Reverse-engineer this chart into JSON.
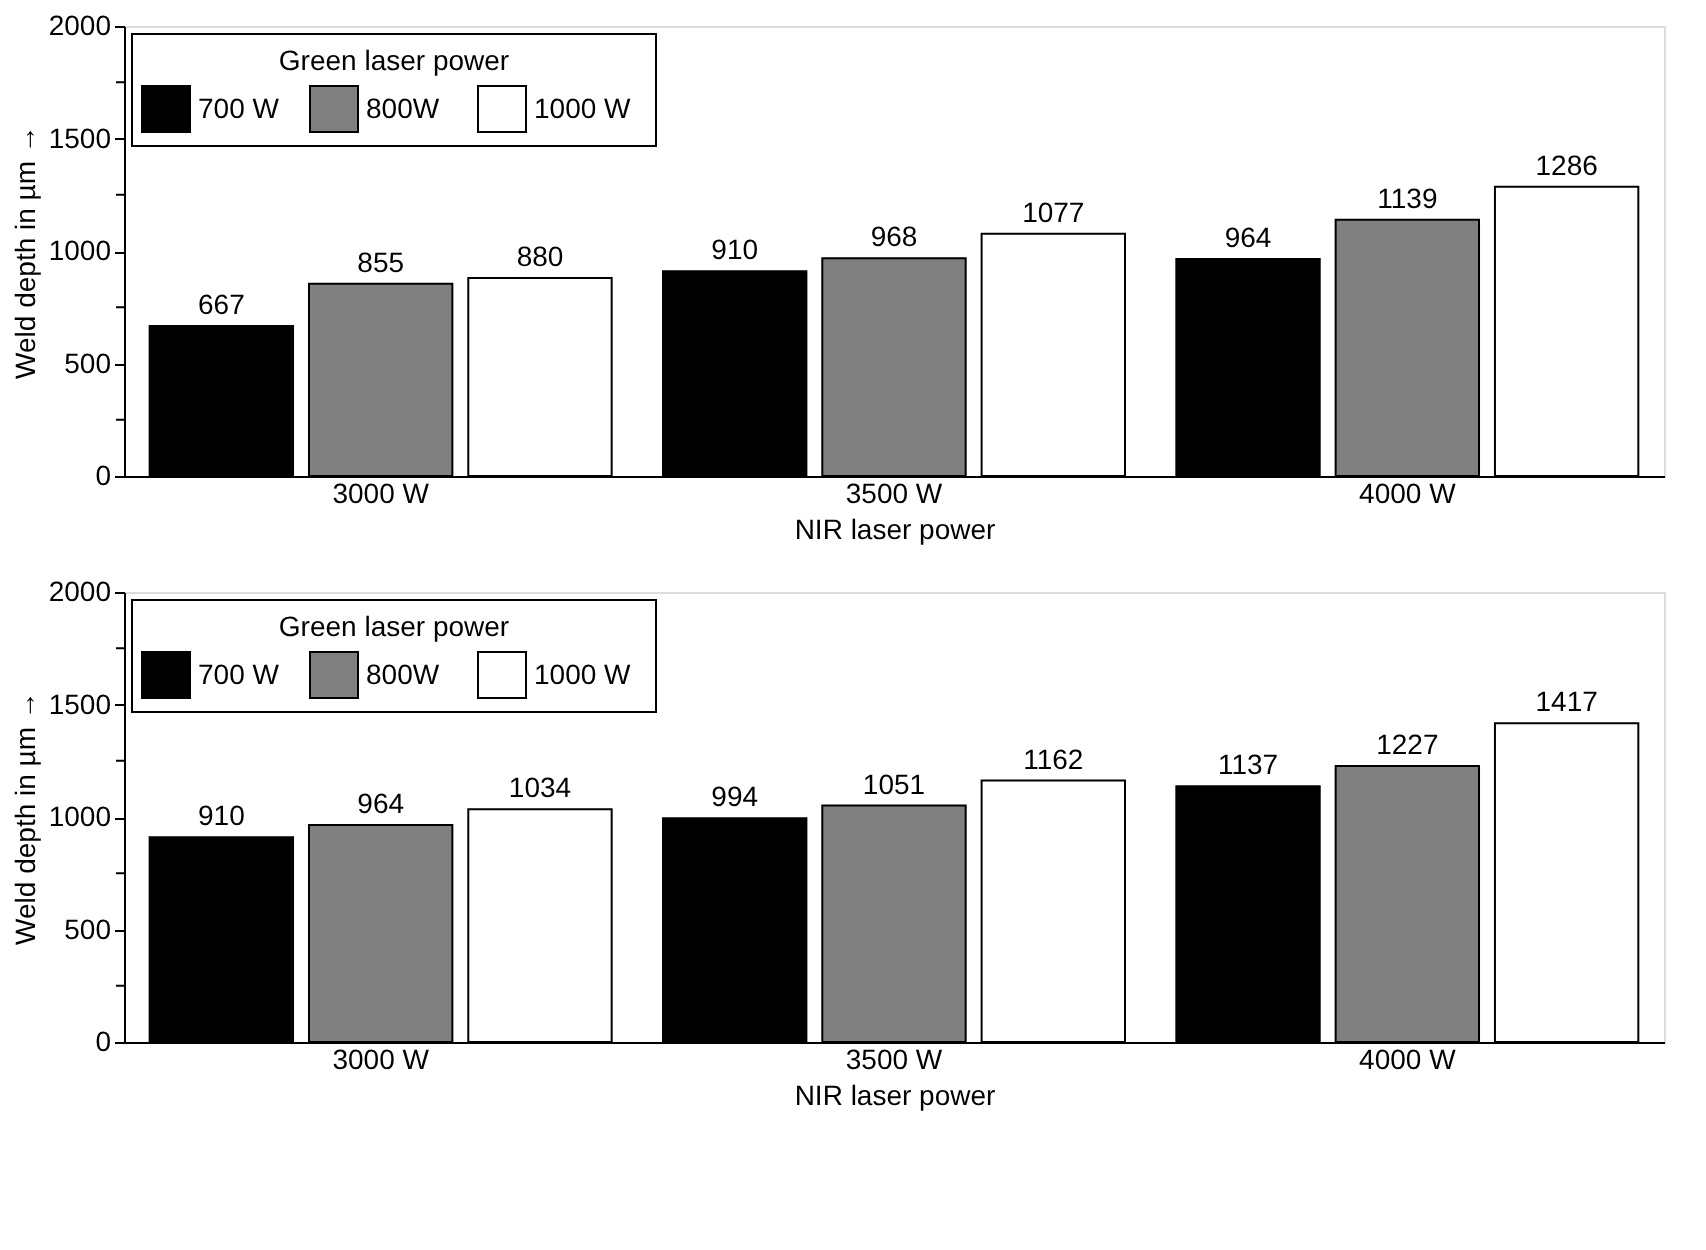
{
  "chart_data": [
    {
      "type": "bar",
      "categories": [
        "3000 W",
        "3500 W",
        "4000 W"
      ],
      "series": [
        {
          "name": "700 W",
          "color": "#000000",
          "values": [
            667,
            910,
            964
          ]
        },
        {
          "name": "800W",
          "color": "#808080",
          "values": [
            855,
            968,
            1139
          ]
        },
        {
          "name": "1000 W",
          "color": "#ffffff",
          "values": [
            880,
            1077,
            1286
          ]
        }
      ],
      "xlabel": "NIR laser power",
      "ylabel": "Weld depth in µm →",
      "legend_title": "Green laser power",
      "legend": "top left",
      "ylim": [
        0,
        2000
      ],
      "yticks": [
        0,
        {
          "value": 250,
          "label": null
        },
        500,
        {
          "value": 750,
          "label": null
        },
        1000,
        {
          "value": 1250,
          "label": null
        },
        1500,
        {
          "value": 1750,
          "label": null
        },
        2000
      ],
      "data_labels": true,
      "grid": false
    },
    {
      "type": "bar",
      "categories": [
        "3000 W",
        "3500 W",
        "4000 W"
      ],
      "series": [
        {
          "name": "700 W",
          "color": "#000000",
          "values": [
            910,
            994,
            1137
          ]
        },
        {
          "name": "800W",
          "color": "#808080",
          "values": [
            964,
            1051,
            1227
          ]
        },
        {
          "name": "1000 W",
          "color": "#ffffff",
          "values": [
            1034,
            1162,
            1417
          ]
        }
      ],
      "xlabel": "NIR laser power",
      "ylabel": "Weld depth in µm →",
      "legend_title": "Green laser power",
      "legend": "top left",
      "ylim": [
        0,
        2000
      ],
      "yticks": [
        0,
        {
          "value": 250,
          "label": null
        },
        500,
        {
          "value": 750,
          "label": null
        },
        1000,
        {
          "value": 1250,
          "label": null
        },
        1500,
        {
          "value": 1750,
          "label": null
        },
        2000
      ],
      "data_labels": true,
      "grid": false
    }
  ]
}
